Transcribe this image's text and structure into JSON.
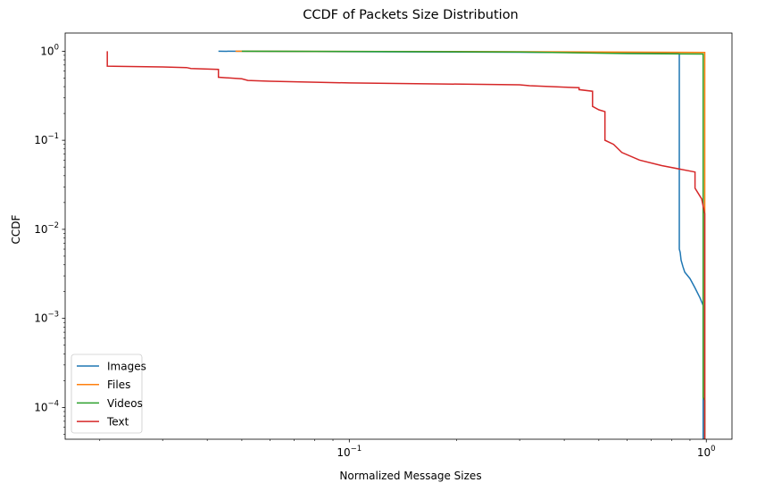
{
  "chart_data": {
    "type": "line",
    "title": "CCDF of Packets Size Distribution",
    "xlabel": "Normalized Message Sizes",
    "ylabel": "CCDF",
    "xscale": "log",
    "yscale": "log",
    "xlim": [
      0.016,
      1.18
    ],
    "ylim": [
      4.4e-05,
      1.6
    ],
    "x_major_ticks": [
      {
        "value": 0.1,
        "label_base": "10",
        "label_exp": "−1"
      },
      {
        "value": 1,
        "label_base": "10",
        "label_exp": "0"
      }
    ],
    "y_major_ticks": [
      {
        "value": 0.0001,
        "label_base": "10",
        "label_exp": "−4"
      },
      {
        "value": 0.001,
        "label_base": "10",
        "label_exp": "−3"
      },
      {
        "value": 0.01,
        "label_base": "10",
        "label_exp": "−2"
      },
      {
        "value": 0.1,
        "label_base": "10",
        "label_exp": "−1"
      },
      {
        "value": 1,
        "label_base": "10",
        "label_exp": "0"
      }
    ],
    "grid": false,
    "legend_position": "lower-left",
    "series": [
      {
        "name": "Images",
        "color": "#1f77b4",
        "points": [
          [
            0.043,
            1.0
          ],
          [
            0.08,
            0.99
          ],
          [
            0.3,
            0.975
          ],
          [
            0.6,
            0.96
          ],
          [
            0.84,
            0.94
          ],
          [
            0.84,
            0.006
          ],
          [
            0.845,
            0.0055
          ],
          [
            0.85,
            0.0045
          ],
          [
            0.86,
            0.0038
          ],
          [
            0.87,
            0.0033
          ],
          [
            0.9,
            0.0028
          ],
          [
            0.93,
            0.0022
          ],
          [
            0.96,
            0.0017
          ],
          [
            0.98,
            0.0014
          ],
          [
            0.98,
            4e-05
          ]
        ]
      },
      {
        "name": "Files",
        "color": "#ff7f0e",
        "points": [
          [
            0.048,
            1.0
          ],
          [
            0.2,
            0.99
          ],
          [
            0.5,
            0.98
          ],
          [
            0.7,
            0.975
          ],
          [
            0.99,
            0.97
          ],
          [
            0.99,
            4e-05
          ]
        ]
      },
      {
        "name": "Videos",
        "color": "#2ca02c",
        "points": [
          [
            0.05,
            1.0
          ],
          [
            0.3,
            0.98
          ],
          [
            0.6,
            0.94
          ],
          [
            0.98,
            0.93
          ],
          [
            0.98,
            0.00013
          ],
          [
            0.99,
            0.00012
          ],
          [
            0.99,
            4e-05
          ]
        ]
      },
      {
        "name": "Text",
        "color": "#d62728",
        "points": [
          [
            0.021,
            1.0
          ],
          [
            0.021,
            0.68
          ],
          [
            0.03,
            0.665
          ],
          [
            0.035,
            0.655
          ],
          [
            0.036,
            0.64
          ],
          [
            0.043,
            0.625
          ],
          [
            0.043,
            0.51
          ],
          [
            0.05,
            0.49
          ],
          [
            0.052,
            0.47
          ],
          [
            0.06,
            0.46
          ],
          [
            0.1,
            0.44
          ],
          [
            0.3,
            0.42
          ],
          [
            0.32,
            0.41
          ],
          [
            0.4,
            0.395
          ],
          [
            0.44,
            0.39
          ],
          [
            0.44,
            0.37
          ],
          [
            0.48,
            0.355
          ],
          [
            0.48,
            0.24
          ],
          [
            0.5,
            0.22
          ],
          [
            0.52,
            0.21
          ],
          [
            0.52,
            0.1
          ],
          [
            0.55,
            0.09
          ],
          [
            0.58,
            0.073
          ],
          [
            0.65,
            0.06
          ],
          [
            0.75,
            0.052
          ],
          [
            0.93,
            0.044
          ],
          [
            0.93,
            0.029
          ],
          [
            0.97,
            0.022
          ],
          [
            0.99,
            0.015
          ],
          [
            0.99,
            4e-05
          ]
        ]
      }
    ]
  }
}
